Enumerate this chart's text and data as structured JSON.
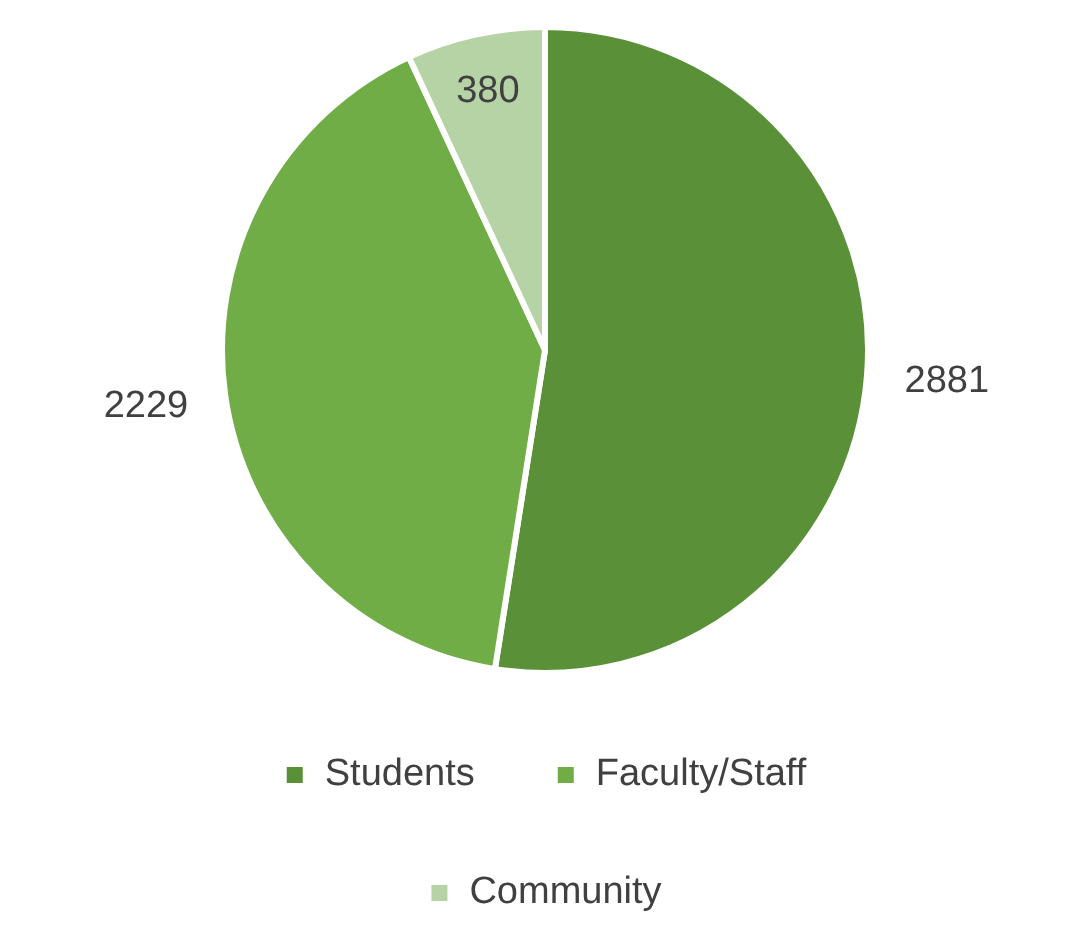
{
  "chart_data": {
    "type": "pie",
    "categories": [
      "Students",
      "Faculty/Staff",
      "Community"
    ],
    "values": [
      2881,
      2229,
      380
    ],
    "colors": [
      "#5a9138",
      "#70ad47",
      "#b5d3a4"
    ],
    "data_labels": true,
    "legend": "bottom"
  }
}
